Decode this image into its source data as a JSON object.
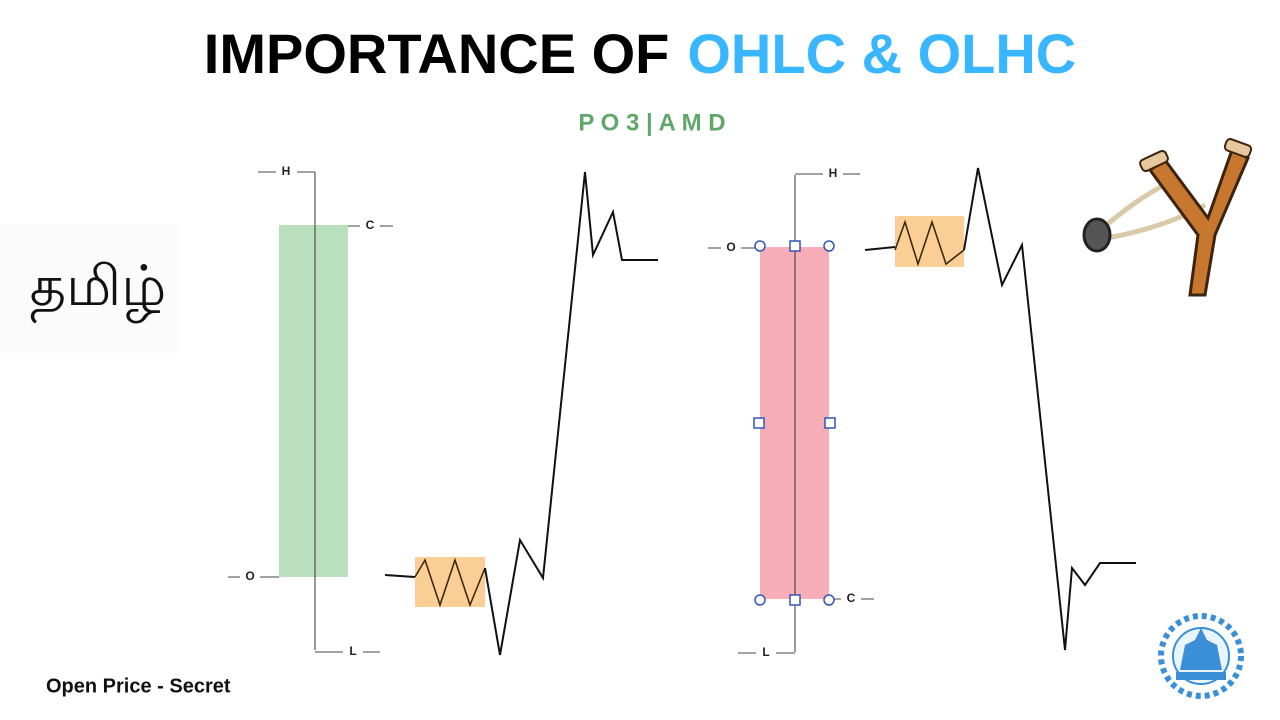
{
  "header": {
    "title_black": "IMPORTANCE OF",
    "title_blue": "OHLC & OLHC",
    "subtitle": "P O 3 | A M D"
  },
  "language": "தமிழ்",
  "left_candle": {
    "high": "H",
    "close": "C",
    "open": "O",
    "low": "L"
  },
  "right_candle": {
    "high": "H",
    "open": "O",
    "close": "C",
    "low": "L"
  },
  "footer": "Open Price - Secret"
}
